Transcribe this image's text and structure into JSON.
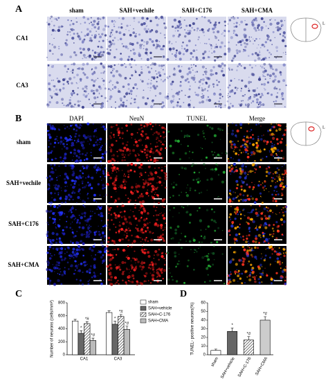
{
  "panel_a": {
    "label": "A",
    "columns": [
      "sham",
      "SAH+vechile",
      "SAH+C176",
      "SAH+CMA"
    ],
    "rows": [
      "CA1",
      "CA3"
    ],
    "side_label": "L"
  },
  "panel_b": {
    "label": "B",
    "columns": [
      "DAPI",
      "NeuN",
      "TUNEL",
      "Merge"
    ],
    "rows": [
      "sham",
      "SAH+vechile",
      "SAH+C176",
      "SAH+CMA"
    ],
    "side_label": "L"
  },
  "chart_data": [
    {
      "type": "bar",
      "panel_label": "C",
      "y_label": "Number of neurons (cells/mm²)",
      "categories": [
        "CA1",
        "CA3"
      ],
      "ylim": [
        0,
        800
      ],
      "yticks": [
        0,
        200,
        400,
        600,
        800
      ],
      "series": [
        {
          "name": "sham",
          "color": "#ffffff",
          "values": [
            520,
            650
          ],
          "errors": [
            25,
            25
          ]
        },
        {
          "name": "SAH+vehicle",
          "color": "#666666",
          "values": [
            330,
            470
          ],
          "errors": [
            40,
            45
          ],
          "labels": [
            "*",
            "*"
          ]
        },
        {
          "name": "SAH+C-176",
          "color": "#555555",
          "pattern": "hatch",
          "values": [
            480,
            590
          ],
          "errors": [
            30,
            30
          ],
          "labels": [
            "*#",
            "*#"
          ]
        },
        {
          "name": "SAH+CMA",
          "color": "#bbbbbb",
          "values": [
            220,
            390
          ],
          "errors": [
            35,
            50
          ],
          "labels": [
            "*#",
            "*#"
          ]
        }
      ]
    },
    {
      "type": "bar",
      "panel_label": "D",
      "y_label": "TUNEL- positive neurons(%)",
      "categories": [
        "sham",
        "SAH+vehicle",
        "SAH+C-176",
        "SAH+CMA"
      ],
      "ylim": [
        0,
        60
      ],
      "yticks": [
        0,
        10,
        20,
        30,
        40,
        50,
        60
      ],
      "values": [
        5,
        27,
        17,
        40
      ],
      "errors": [
        1.5,
        4,
        4,
        4
      ],
      "fills": [
        "#ffffff",
        "#666666",
        "hatch",
        "#cccccc"
      ],
      "labels": [
        null,
        "*",
        "*#",
        "*#"
      ]
    }
  ]
}
